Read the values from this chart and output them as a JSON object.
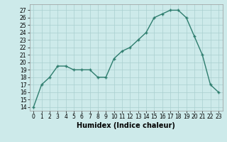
{
  "x": [
    0,
    1,
    2,
    3,
    4,
    5,
    6,
    7,
    8,
    9,
    10,
    11,
    12,
    13,
    14,
    15,
    16,
    17,
    18,
    19,
    20,
    21,
    22,
    23
  ],
  "y": [
    14,
    17,
    18,
    19.5,
    19.5,
    19,
    19,
    19,
    18,
    18,
    20.5,
    21.5,
    22,
    23,
    24,
    26,
    26.5,
    27,
    27,
    26,
    23.5,
    21,
    17,
    16
  ],
  "xlabel": "Humidex (Indice chaleur)",
  "line_color": "#2e7d6e",
  "bg_color": "#cdeaea",
  "grid_color": "#aacfcf",
  "ylim_min": 13.5,
  "ylim_max": 27.8,
  "xlim_min": -0.5,
  "xlim_max": 23.5,
  "yticks": [
    14,
    15,
    16,
    17,
    18,
    19,
    20,
    21,
    22,
    23,
    24,
    25,
    26,
    27
  ],
  "xticks": [
    0,
    1,
    2,
    3,
    4,
    5,
    6,
    7,
    8,
    9,
    10,
    11,
    12,
    13,
    14,
    15,
    16,
    17,
    18,
    19,
    20,
    21,
    22,
    23
  ],
  "tick_fontsize": 5.5,
  "xlabel_fontsize": 7.0,
  "linewidth": 1.0,
  "markersize": 3.5
}
